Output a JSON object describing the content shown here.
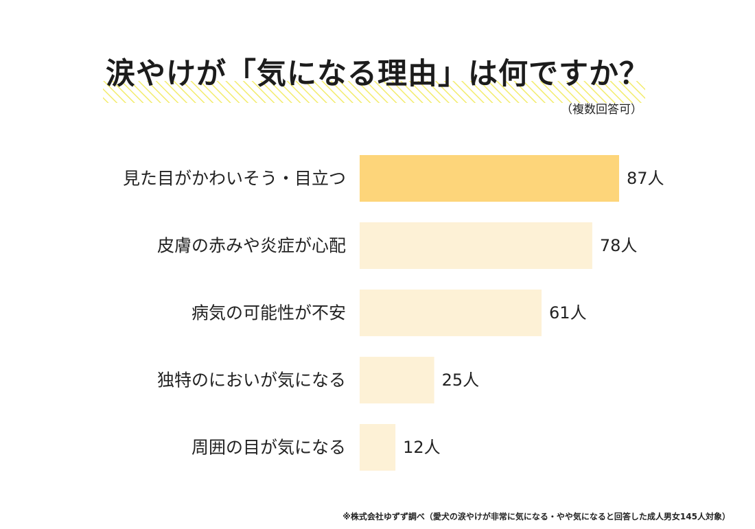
{
  "title": "涙やけが「気になる理由」は何ですか？",
  "subtitle": "（複数回答可）",
  "footnote": "※株式会社ゆずず調べ（愛犬の涙やけが非常に気になる・やや気になると回答した成人男女145人対象）",
  "colors": {
    "highlight_bar": "#fdd57a",
    "bar": "#fdf1d6",
    "title_hatch": "#f3ec6b",
    "text": "#222222"
  },
  "chart_data": {
    "type": "bar",
    "orientation": "horizontal",
    "title": "涙やけが「気になる理由」は何ですか？",
    "subtitle": "（複数回答可）",
    "categories": [
      "見た目がかわいそう・目立つ",
      "皮膚の赤みや炎症が心配",
      "病気の可能性が不安",
      "独特のにおいが気になる",
      "周囲の目が気になる"
    ],
    "values": [
      87,
      78,
      61,
      25,
      12
    ],
    "value_labels": [
      "87人",
      "78人",
      "61人",
      "25人",
      "12人"
    ],
    "unit": "人",
    "highlight_index": 0,
    "xlim": [
      0,
      87
    ],
    "grid": false
  }
}
